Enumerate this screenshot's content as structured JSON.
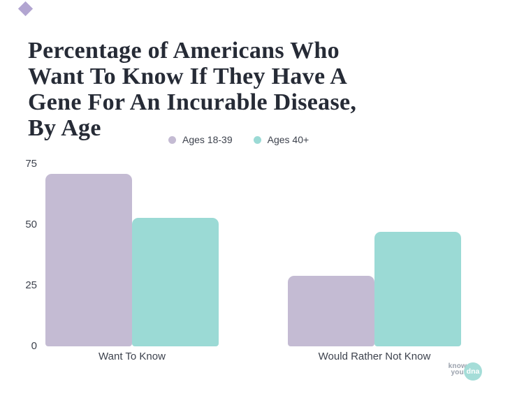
{
  "page": {
    "background": "#ffffff"
  },
  "decor": {
    "diamond_color": "#b2a5d1"
  },
  "title": {
    "full": "Percentage of Americans Who Want To Know If They Have A Gene For An Incurable Disease, By Age",
    "lines": [
      "Percentage of Americans Who",
      "Want To Know If They Have A",
      "Gene For An Incurable Disease,",
      "By Age"
    ],
    "color": "#262b36"
  },
  "chart_data": {
    "type": "bar",
    "title": "Percentage of Americans Who Want To Know If They Have A Gene For An Incurable Disease, By Age",
    "categories": [
      "Want To Know",
      "Would Rather Not Know"
    ],
    "series": [
      {
        "name": "Ages 18-39",
        "color": "#c4bbd3",
        "values": [
          71,
          29
        ]
      },
      {
        "name": "Ages 40+",
        "color": "#9bdad5",
        "values": [
          53,
          47
        ]
      }
    ],
    "xlabel": "",
    "ylabel": "",
    "ylim": [
      0,
      75
    ],
    "yticks": [
      0,
      25,
      50,
      75
    ],
    "grid": false,
    "legend_position": "top-center"
  },
  "logo": {
    "line1": "know",
    "line2": "your",
    "badge": "dna",
    "text_color": "#9aa1ac",
    "badge_color": "#a5ddd8"
  }
}
